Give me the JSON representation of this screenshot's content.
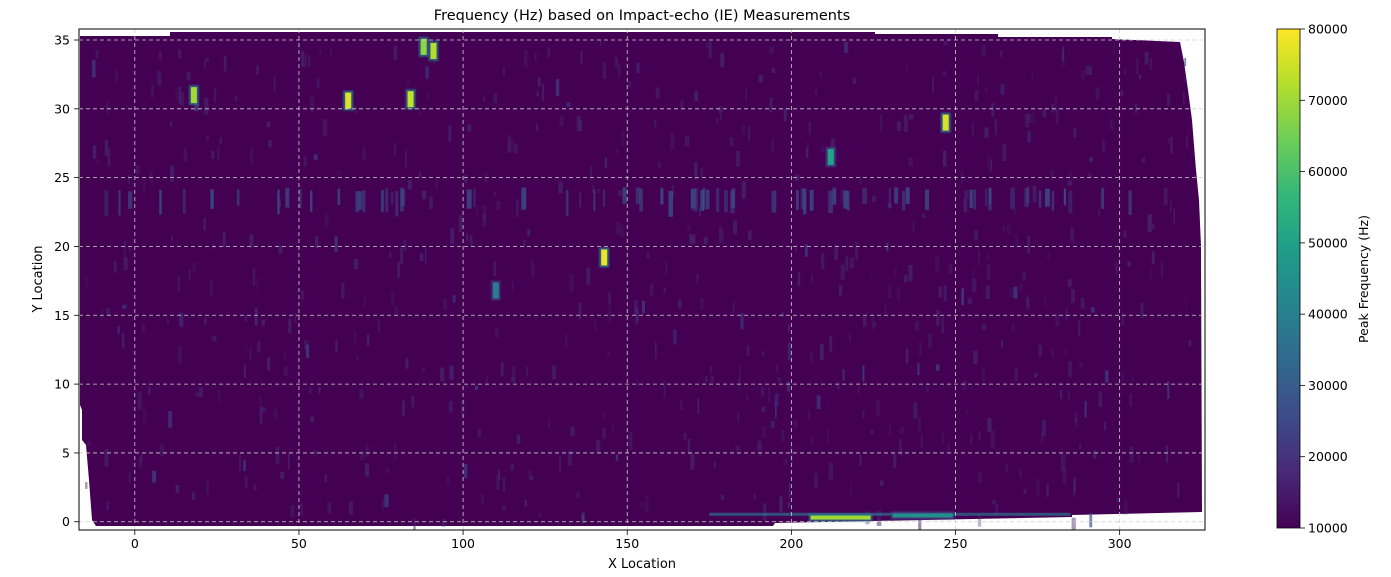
{
  "chart_data": {
    "type": "heatmap",
    "title": "Frequency (Hz) based on Impact-echo (IE) Measurements",
    "xlabel": "X Location",
    "ylabel": "Y Location",
    "xlim": [
      -17,
      326
    ],
    "ylim": [
      -0.6,
      35.8
    ],
    "xticks": [
      0,
      50,
      100,
      150,
      200,
      250,
      300
    ],
    "yticks": [
      0,
      5,
      10,
      15,
      20,
      25,
      30,
      35
    ],
    "grid": true,
    "grid_style": "dashed",
    "background_value": 10000,
    "colorbar": {
      "label": "Peak Frequency (Hz)",
      "min": 10000,
      "max": 80000,
      "ticks": [
        10000,
        20000,
        30000,
        40000,
        50000,
        60000,
        70000,
        80000
      ],
      "colormap": "viridis",
      "colors": [
        "#440154",
        "#482878",
        "#3e4a89",
        "#31688e",
        "#26828e",
        "#1f9e89",
        "#35b779",
        "#6ece58",
        "#b5de2b",
        "#fde725"
      ]
    },
    "hotspots": [
      {
        "x": 143,
        "y": 19.2,
        "value": 78000
      },
      {
        "x": 247,
        "y": 29.0,
        "value": 76000
      },
      {
        "x": 65,
        "y": 30.6,
        "value": 76000
      },
      {
        "x": 84,
        "y": 30.7,
        "value": 74000
      },
      {
        "x": 18,
        "y": 31.0,
        "value": 70000
      },
      {
        "x": 88,
        "y": 34.5,
        "value": 68000
      },
      {
        "x": 91,
        "y": 34.2,
        "value": 72000
      },
      {
        "x": 212,
        "y": 26.5,
        "value": 50000
      },
      {
        "x": 110,
        "y": 16.8,
        "value": 40000
      },
      {
        "x": 215,
        "y": 0.3,
        "value": 70000
      },
      {
        "x": 240,
        "y": 0.45,
        "value": 45000
      }
    ]
  }
}
